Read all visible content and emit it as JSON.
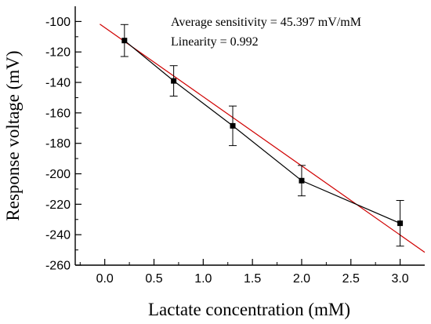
{
  "chart_data": {
    "type": "scatter",
    "xlabel": "Lactate concentration (mM)",
    "ylabel": "Response voltage (mV)",
    "xlim": [
      -0.3,
      3.25
    ],
    "ylim": [
      -260,
      -90
    ],
    "x_ticks": [
      0.0,
      0.5,
      1.0,
      1.5,
      2.0,
      2.5,
      3.0
    ],
    "x_tick_labels": [
      "0.0",
      "0.5",
      "1.0",
      "1.5",
      "2.0",
      "2.5",
      "3.0"
    ],
    "y_ticks": [
      -100,
      -120,
      -140,
      -160,
      -180,
      -200,
      -220,
      -240,
      -260
    ],
    "y_tick_labels": [
      "-100",
      "-120",
      "-140",
      "-160",
      "-180",
      "-200",
      "-220",
      "-240",
      "-260"
    ],
    "grid": false,
    "series": [
      {
        "marker": "square",
        "color": "#000000",
        "points": [
          {
            "x": 0.2,
            "y": -112.5,
            "err": 10.5
          },
          {
            "x": 0.7,
            "y": -139.0,
            "err": 10.0
          },
          {
            "x": 1.3,
            "y": -168.5,
            "err": 13.0
          },
          {
            "x": 2.0,
            "y": -204.5,
            "err": 10.0
          },
          {
            "x": 3.0,
            "y": -232.5,
            "err": 15.0
          }
        ]
      }
    ],
    "fit_line": {
      "color": "#d00000",
      "x_range": [
        -0.05,
        3.25
      ],
      "slope": -45.397,
      "intercept": -104.0
    },
    "annotations": [
      "Average sensitivity = 45.397 mV/mM",
      "Linearity = 0.992"
    ]
  }
}
